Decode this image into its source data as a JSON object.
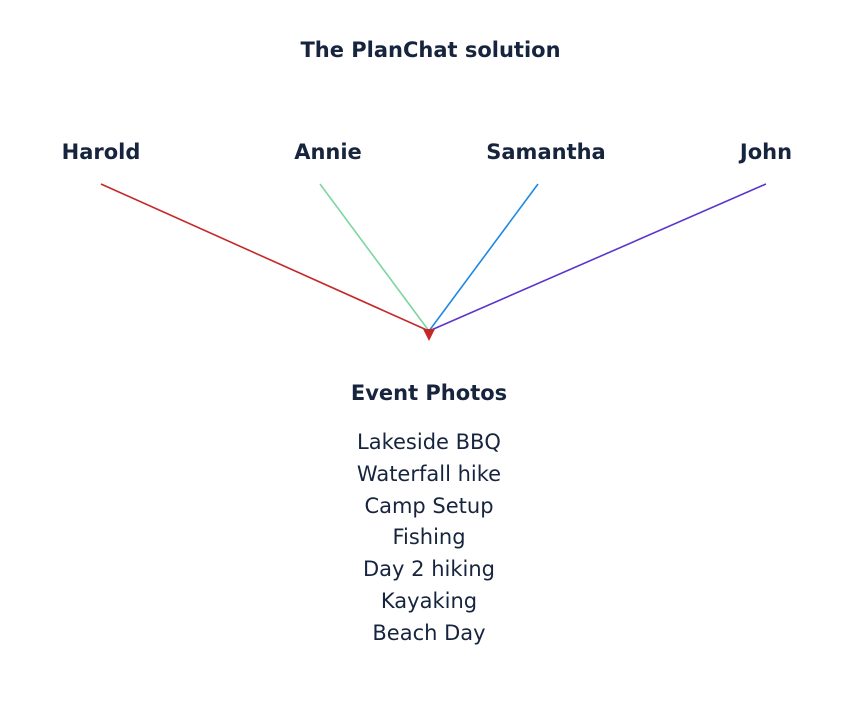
{
  "title": "The PlanChat solution",
  "people": [
    {
      "name": "Harold",
      "color": "#c62828"
    },
    {
      "name": "Annie",
      "color": "#7dd6a0"
    },
    {
      "name": "Samantha",
      "color": "#1e88e5"
    },
    {
      "name": "John",
      "color": "#5c35cc"
    }
  ],
  "target": {
    "title": "Event Photos",
    "arrow_color": "#c62828",
    "items": [
      "Lakeside BBQ",
      "Waterfall hike",
      "Camp Setup",
      "Fishing",
      "Day 2 hiking",
      "Kayaking",
      "Beach Day"
    ]
  }
}
